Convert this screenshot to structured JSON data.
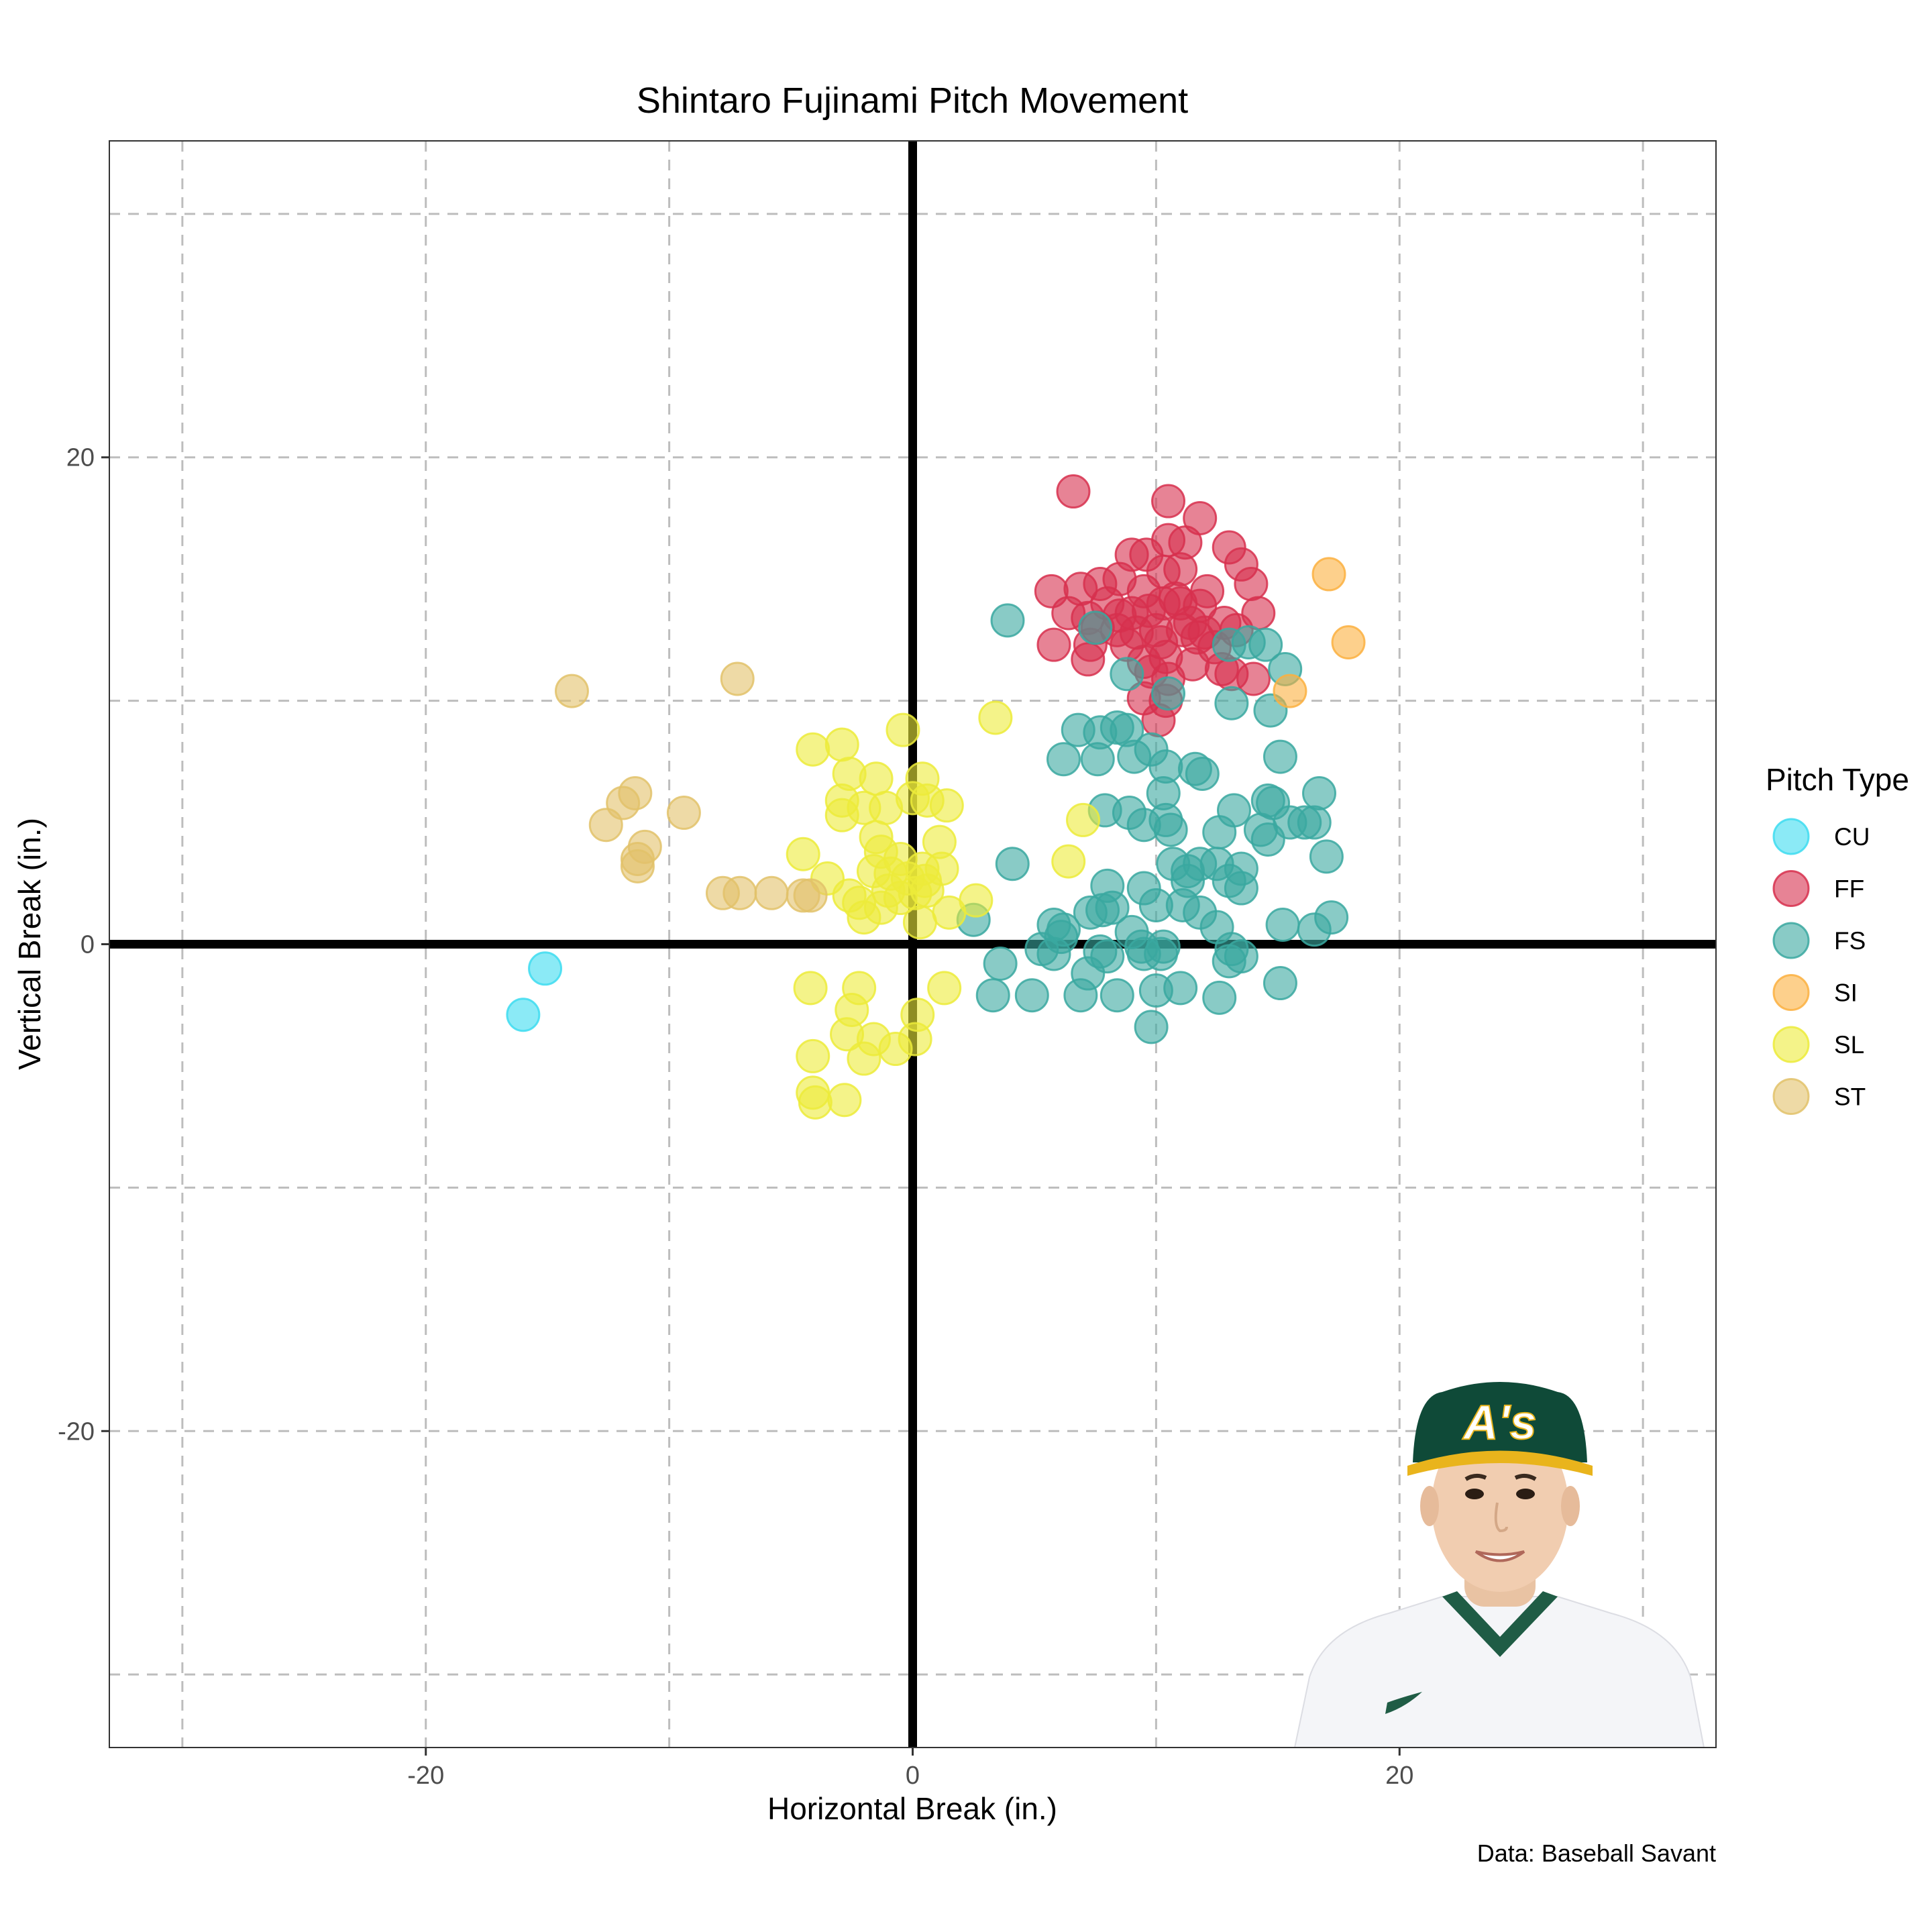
{
  "chart_data": {
    "type": "scatter",
    "title": "Shintaro Fujinami Pitch Movement",
    "xlabel": "Horizontal Break (in.)",
    "ylabel": "Vertical Break (in.)",
    "caption": "Data: Baseball Savant",
    "xlim": [
      -33,
      33
    ],
    "ylim": [
      -33,
      33
    ],
    "grid": true,
    "grid_style": "dashed",
    "major_ticks": [
      -20,
      0,
      20
    ],
    "minor_gridlines": [
      -30,
      -10,
      10,
      30
    ],
    "reference_lines": {
      "x": 0,
      "y": 0
    },
    "legend": {
      "title": "Pitch Type",
      "position": "right"
    },
    "series": [
      {
        "name": "CU",
        "color": "#3ddcf0",
        "points": [
          [
            -15.1,
            -1.0
          ],
          [
            -16.0,
            -2.9
          ]
        ]
      },
      {
        "name": "FF",
        "color": "#d7304e",
        "points": [
          [
            6.6,
            18.6
          ],
          [
            10.5,
            18.2
          ],
          [
            11.8,
            17.5
          ],
          [
            10.5,
            16.6
          ],
          [
            11.2,
            16.5
          ],
          [
            9.0,
            16.0
          ],
          [
            9.6,
            16.0
          ],
          [
            13.0,
            16.3
          ],
          [
            13.5,
            15.6
          ],
          [
            11.0,
            15.4
          ],
          [
            10.3,
            15.3
          ],
          [
            8.5,
            15.0
          ],
          [
            7.7,
            14.8
          ],
          [
            6.9,
            14.6
          ],
          [
            5.7,
            14.5
          ],
          [
            13.9,
            14.8
          ],
          [
            12.1,
            14.5
          ],
          [
            9.5,
            14.5
          ],
          [
            10.3,
            14.0
          ],
          [
            11.0,
            14.0
          ],
          [
            8.0,
            14.0
          ],
          [
            6.4,
            13.6
          ],
          [
            7.2,
            13.4
          ],
          [
            9.0,
            13.6
          ],
          [
            11.8,
            13.9
          ],
          [
            14.2,
            13.6
          ],
          [
            12.8,
            13.2
          ],
          [
            13.3,
            12.9
          ],
          [
            11.1,
            12.9
          ],
          [
            10.0,
            12.9
          ],
          [
            9.2,
            12.8
          ],
          [
            8.4,
            12.9
          ],
          [
            7.6,
            13.0
          ],
          [
            5.8,
            12.3
          ],
          [
            7.3,
            12.3
          ],
          [
            8.8,
            12.3
          ],
          [
            10.2,
            12.4
          ],
          [
            11.7,
            12.6
          ],
          [
            12.4,
            12.2
          ],
          [
            10.4,
            11.8
          ],
          [
            9.5,
            11.6
          ],
          [
            7.2,
            11.7
          ],
          [
            11.5,
            11.5
          ],
          [
            12.7,
            11.3
          ],
          [
            13.1,
            11.1
          ],
          [
            14.0,
            10.9
          ],
          [
            9.8,
            11.2
          ],
          [
            10.5,
            10.9
          ],
          [
            9.5,
            10.1
          ],
          [
            10.4,
            10.0
          ],
          [
            10.1,
            9.2
          ],
          [
            9.7,
            13.7
          ],
          [
            10.8,
            14.2
          ],
          [
            11.4,
            13.2
          ],
          [
            12.0,
            12.8
          ],
          [
            8.5,
            13.5
          ]
        ]
      },
      {
        "name": "FS",
        "color": "#3aa8a0",
        "points": [
          [
            3.9,
            13.3
          ],
          [
            7.5,
            13.0
          ],
          [
            13.0,
            12.3
          ],
          [
            13.8,
            12.4
          ],
          [
            14.5,
            12.3
          ],
          [
            15.3,
            11.3
          ],
          [
            8.8,
            11.1
          ],
          [
            10.5,
            10.3
          ],
          [
            13.1,
            9.9
          ],
          [
            14.7,
            9.6
          ],
          [
            6.8,
            8.8
          ],
          [
            7.7,
            8.7
          ],
          [
            8.4,
            8.9
          ],
          [
            8.8,
            8.8
          ],
          [
            9.8,
            8.0
          ],
          [
            6.2,
            7.6
          ],
          [
            7.6,
            7.6
          ],
          [
            9.1,
            7.7
          ],
          [
            10.4,
            7.3
          ],
          [
            11.6,
            7.2
          ],
          [
            11.9,
            7.0
          ],
          [
            15.1,
            7.7
          ],
          [
            10.3,
            6.2
          ],
          [
            14.6,
            5.9
          ],
          [
            14.8,
            5.8
          ],
          [
            16.7,
            6.2
          ],
          [
            13.2,
            5.5
          ],
          [
            7.9,
            5.5
          ],
          [
            8.9,
            5.4
          ],
          [
            9.5,
            4.9
          ],
          [
            10.4,
            5.1
          ],
          [
            10.6,
            4.7
          ],
          [
            12.6,
            4.6
          ],
          [
            14.3,
            4.7
          ],
          [
            14.6,
            4.3
          ],
          [
            15.5,
            5.0
          ],
          [
            16.1,
            5.0
          ],
          [
            16.5,
            5.0
          ],
          [
            17.0,
            3.6
          ],
          [
            4.1,
            3.3
          ],
          [
            10.7,
            3.3
          ],
          [
            11.3,
            3.0
          ],
          [
            11.8,
            3.3
          ],
          [
            12.5,
            3.3
          ],
          [
            13.5,
            3.1
          ],
          [
            13.0,
            2.6
          ],
          [
            13.5,
            2.3
          ],
          [
            11.3,
            2.6
          ],
          [
            8.0,
            2.4
          ],
          [
            9.5,
            2.3
          ],
          [
            7.8,
            1.4
          ],
          [
            7.3,
            1.3
          ],
          [
            8.2,
            1.5
          ],
          [
            10.0,
            1.6
          ],
          [
            11.1,
            1.6
          ],
          [
            11.8,
            1.3
          ],
          [
            2.5,
            1.0
          ],
          [
            5.8,
            0.8
          ],
          [
            6.2,
            0.6
          ],
          [
            9.0,
            0.5
          ],
          [
            12.5,
            0.7
          ],
          [
            15.2,
            0.8
          ],
          [
            16.5,
            0.6
          ],
          [
            17.2,
            1.1
          ],
          [
            6.1,
            0.3
          ],
          [
            5.3,
            -0.2
          ],
          [
            5.8,
            -0.4
          ],
          [
            7.7,
            -0.3
          ],
          [
            8.0,
            -0.5
          ],
          [
            9.4,
            -0.1
          ],
          [
            9.5,
            -0.4
          ],
          [
            10.3,
            -0.1
          ],
          [
            10.2,
            -0.4
          ],
          [
            13.1,
            -0.2
          ],
          [
            13.5,
            -0.5
          ],
          [
            13.0,
            -0.7
          ],
          [
            3.6,
            -0.8
          ],
          [
            7.2,
            -1.2
          ],
          [
            15.1,
            -1.6
          ],
          [
            11.0,
            -1.8
          ],
          [
            10.0,
            -1.9
          ],
          [
            3.3,
            -2.1
          ],
          [
            4.9,
            -2.1
          ],
          [
            6.9,
            -2.1
          ],
          [
            8.4,
            -2.1
          ],
          [
            12.6,
            -2.2
          ],
          [
            9.8,
            -3.4
          ]
        ]
      },
      {
        "name": "SI",
        "color": "#fcb040",
        "points": [
          [
            17.1,
            15.2
          ],
          [
            17.9,
            12.4
          ],
          [
            15.5,
            10.4
          ]
        ]
      },
      {
        "name": "SL",
        "color": "#eceb3a",
        "points": [
          [
            -0.4,
            8.8
          ],
          [
            3.4,
            9.3
          ],
          [
            -2.9,
            8.2
          ],
          [
            -4.1,
            8.0
          ],
          [
            -2.6,
            7.0
          ],
          [
            -1.5,
            6.8
          ],
          [
            0.4,
            6.8
          ],
          [
            -2.9,
            5.9
          ],
          [
            -2.0,
            5.6
          ],
          [
            -1.1,
            5.6
          ],
          [
            0.0,
            6.0
          ],
          [
            0.6,
            5.9
          ],
          [
            1.4,
            5.7
          ],
          [
            -2.9,
            5.3
          ],
          [
            7.0,
            5.1
          ],
          [
            -1.5,
            4.4
          ],
          [
            1.1,
            4.2
          ],
          [
            -1.3,
            3.8
          ],
          [
            -4.5,
            3.7
          ],
          [
            -0.5,
            3.5
          ],
          [
            0.4,
            3.1
          ],
          [
            6.4,
            3.4
          ],
          [
            -1.6,
            3.0
          ],
          [
            -0.9,
            2.9
          ],
          [
            -0.2,
            2.7
          ],
          [
            0.5,
            2.6
          ],
          [
            1.2,
            3.1
          ],
          [
            -3.5,
            2.7
          ],
          [
            -1.0,
            2.2
          ],
          [
            -0.5,
            1.9
          ],
          [
            0.1,
            2.1
          ],
          [
            0.6,
            2.2
          ],
          [
            -2.6,
            2.0
          ],
          [
            -2.2,
            1.7
          ],
          [
            -1.3,
            1.5
          ],
          [
            2.6,
            1.8
          ],
          [
            1.5,
            1.3
          ],
          [
            -2.0,
            1.1
          ],
          [
            0.3,
            0.9
          ],
          [
            -4.2,
            -1.8
          ],
          [
            -2.2,
            -1.8
          ],
          [
            -2.5,
            -2.7
          ],
          [
            1.3,
            -1.8
          ],
          [
            0.2,
            -2.9
          ],
          [
            -2.7,
            -3.7
          ],
          [
            -1.6,
            -3.9
          ],
          [
            0.1,
            -3.9
          ],
          [
            -0.7,
            -4.3
          ],
          [
            -2.0,
            -4.7
          ],
          [
            -4.1,
            -4.6
          ],
          [
            -4.1,
            -6.1
          ],
          [
            -2.8,
            -6.4
          ],
          [
            -4.0,
            -6.5
          ]
        ]
      },
      {
        "name": "ST",
        "color": "#e2c26a",
        "points": [
          [
            -14.0,
            10.4
          ],
          [
            -7.2,
            10.9
          ],
          [
            -11.4,
            6.2
          ],
          [
            -11.9,
            5.8
          ],
          [
            -9.4,
            5.4
          ],
          [
            -12.6,
            4.9
          ],
          [
            -11.0,
            4.0
          ],
          [
            -11.3,
            3.5
          ],
          [
            -11.3,
            3.2
          ],
          [
            -7.1,
            2.1
          ],
          [
            -7.8,
            2.1
          ],
          [
            -5.8,
            2.1
          ],
          [
            -4.5,
            2.0
          ],
          [
            -4.2,
            2.0
          ]
        ]
      }
    ]
  },
  "player_photo": {
    "cap_logo": "A's"
  }
}
